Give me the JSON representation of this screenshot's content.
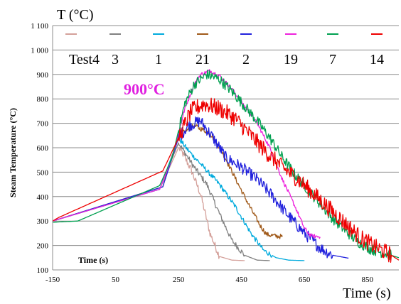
{
  "chart_data": {
    "type": "line",
    "title": "",
    "corner_label": "T (°C)",
    "ylabel": "Steam Temperature (°C)",
    "xlabel": "Time (s)",
    "xlabel_inner": "Time (s)",
    "annotation": "900°C",
    "legend_prefix": "Test4",
    "xlim": [
      -150,
      950
    ],
    "ylim": [
      100,
      1100
    ],
    "xticks": [
      -150,
      50,
      250,
      450,
      650,
      850
    ],
    "yticks": [
      {
        "value": 100,
        "label": "100"
      },
      {
        "value": 200,
        "label": "200"
      },
      {
        "value": 300,
        "label": "300"
      },
      {
        "value": 400,
        "label": "400"
      },
      {
        "value": 500,
        "label": "500"
      },
      {
        "value": 600,
        "label": "600"
      },
      {
        "value": 700,
        "label": "700"
      },
      {
        "value": 800,
        "label": "800"
      },
      {
        "value": 900,
        "label": "900"
      },
      {
        "value": 1000,
        "label": "1 000"
      },
      {
        "value": 1100,
        "label": "1 100"
      }
    ],
    "grid": true,
    "legend_position": "top",
    "series": [
      {
        "name": "4",
        "color": "#d4a09a",
        "noise": 15,
        "points": [
          [
            -150,
            300
          ],
          [
            190,
            430
          ],
          [
            250,
            600
          ],
          [
            262,
            580
          ],
          [
            290,
            510
          ],
          [
            320,
            410
          ],
          [
            350,
            250
          ],
          [
            380,
            155
          ],
          [
            420,
            140
          ],
          [
            460,
            138
          ]
        ]
      },
      {
        "name": "3",
        "color": "#808080",
        "noise": 12,
        "points": [
          [
            -150,
            300
          ],
          [
            190,
            430
          ],
          [
            250,
            620
          ],
          [
            265,
            590
          ],
          [
            300,
            520
          ],
          [
            340,
            450
          ],
          [
            380,
            330
          ],
          [
            420,
            220
          ],
          [
            460,
            160
          ],
          [
            500,
            140
          ],
          [
            540,
            138
          ]
        ]
      },
      {
        "name": "1",
        "color": "#00aadd",
        "noise": 10,
        "points": [
          [
            -150,
            300
          ],
          [
            190,
            430
          ],
          [
            250,
            640
          ],
          [
            280,
            590
          ],
          [
            330,
            520
          ],
          [
            380,
            450
          ],
          [
            430,
            360
          ],
          [
            480,
            250
          ],
          [
            520,
            180
          ],
          [
            560,
            150
          ],
          [
            600,
            140
          ],
          [
            650,
            138
          ]
        ]
      },
      {
        "name": "21",
        "color": "#a05a1a",
        "noise": 10,
        "points": [
          [
            -150,
            300
          ],
          [
            200,
            440
          ],
          [
            250,
            650
          ],
          [
            300,
            690
          ],
          [
            350,
            660
          ],
          [
            390,
            580
          ],
          [
            440,
            450
          ],
          [
            480,
            350
          ],
          [
            510,
            280
          ],
          [
            530,
            245
          ],
          [
            560,
            238
          ],
          [
            580,
            236
          ]
        ]
      },
      {
        "name": "2",
        "color": "#2222dd",
        "noise": 25,
        "points": [
          [
            -150,
            300
          ],
          [
            200,
            440
          ],
          [
            250,
            640
          ],
          [
            280,
            690
          ],
          [
            320,
            710
          ],
          [
            360,
            640
          ],
          [
            400,
            560
          ],
          [
            450,
            520
          ],
          [
            500,
            470
          ],
          [
            550,
            400
          ],
          [
            600,
            320
          ],
          [
            650,
            250
          ],
          [
            700,
            190
          ],
          [
            740,
            160
          ],
          [
            790,
            148
          ]
        ]
      },
      {
        "name": "19",
        "color": "#ee22dd",
        "noise": 8,
        "points": [
          [
            -150,
            300
          ],
          [
            190,
            430
          ],
          [
            230,
            560
          ],
          [
            270,
            760
          ],
          [
            300,
            860
          ],
          [
            320,
            900
          ],
          [
            350,
            915
          ],
          [
            380,
            895
          ],
          [
            420,
            840
          ],
          [
            460,
            770
          ],
          [
            500,
            700
          ],
          [
            540,
            600
          ],
          [
            580,
            470
          ],
          [
            620,
            360
          ],
          [
            650,
            270
          ],
          [
            670,
            240
          ],
          [
            700,
            235
          ]
        ]
      },
      {
        "name": "7",
        "color": "#00a050",
        "noise": 22,
        "points": [
          [
            -150,
            295
          ],
          [
            -70,
            300
          ],
          [
            190,
            445
          ],
          [
            230,
            560
          ],
          [
            270,
            780
          ],
          [
            300,
            860
          ],
          [
            340,
            900
          ],
          [
            380,
            880
          ],
          [
            420,
            830
          ],
          [
            460,
            770
          ],
          [
            500,
            710
          ],
          [
            540,
            640
          ],
          [
            580,
            560
          ],
          [
            620,
            490
          ],
          [
            660,
            430
          ],
          [
            700,
            370
          ],
          [
            740,
            310
          ],
          [
            780,
            260
          ],
          [
            820,
            215
          ],
          [
            860,
            185
          ],
          [
            900,
            170
          ],
          [
            950,
            150
          ]
        ]
      },
      {
        "name": "14",
        "color": "#ee0000",
        "noise": 35,
        "points": [
          [
            -150,
            300
          ],
          [
            -130,
            315
          ],
          [
            200,
            505
          ],
          [
            250,
            640
          ],
          [
            290,
            750
          ],
          [
            330,
            780
          ],
          [
            380,
            760
          ],
          [
            430,
            720
          ],
          [
            480,
            650
          ],
          [
            530,
            580
          ],
          [
            580,
            520
          ],
          [
            630,
            470
          ],
          [
            680,
            410
          ],
          [
            730,
            350
          ],
          [
            780,
            290
          ],
          [
            830,
            230
          ],
          [
            880,
            190
          ],
          [
            920,
            165
          ],
          [
            950,
            140
          ]
        ]
      }
    ]
  }
}
